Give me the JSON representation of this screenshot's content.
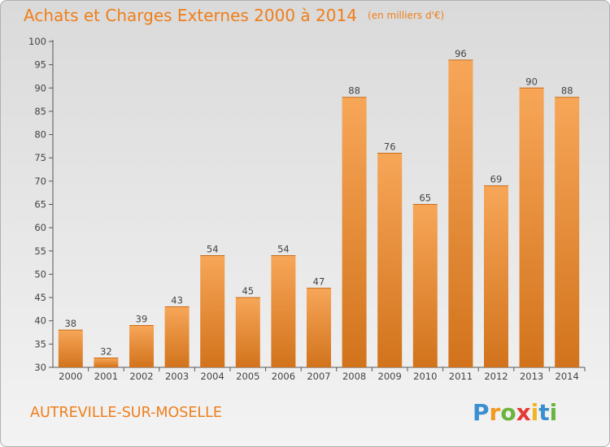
{
  "header": {
    "title": "Achats et Charges Externes 2000 à 2014",
    "unit": "(en milliers d'€)"
  },
  "footer": {
    "commune": "AUTREVILLE-SUR-MOSELLE",
    "logo_letters": [
      "P",
      "r",
      "o",
      "x",
      "i",
      "t",
      "i"
    ],
    "logo_colors": [
      "#3a8fd0",
      "#f29a1f",
      "#6bb43f",
      "#e53935",
      "#f2b41f",
      "#3a8fd0",
      "#6bb43f"
    ]
  },
  "chart_data": {
    "type": "bar",
    "categories": [
      "2000",
      "2001",
      "2002",
      "2003",
      "2004",
      "2005",
      "2006",
      "2007",
      "2008",
      "2009",
      "2010",
      "2011",
      "2012",
      "2013",
      "2014"
    ],
    "values": [
      38,
      32,
      39,
      43,
      54,
      45,
      54,
      47,
      88,
      76,
      65,
      96,
      69,
      90,
      88
    ],
    "ylim": [
      30,
      100
    ],
    "yticks": [
      30,
      35,
      40,
      45,
      50,
      55,
      60,
      65,
      70,
      75,
      80,
      85,
      90,
      95,
      100
    ],
    "grid": false,
    "bar_color_top": "#f7a658",
    "bar_color_bottom": "#d2731c"
  }
}
